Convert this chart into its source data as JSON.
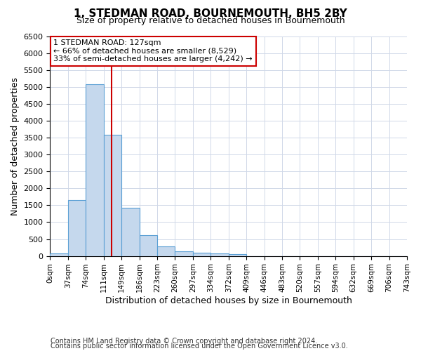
{
  "title": "1, STEDMAN ROAD, BOURNEMOUTH, BH5 2BY",
  "subtitle": "Size of property relative to detached houses in Bournemouth",
  "xlabel": "Distribution of detached houses by size in Bournemouth",
  "ylabel": "Number of detached properties",
  "footnote1": "Contains HM Land Registry data © Crown copyright and database right 2024.",
  "footnote2": "Contains public sector information licensed under the Open Government Licence v3.0.",
  "bin_labels": [
    "0sqm",
    "37sqm",
    "74sqm",
    "111sqm",
    "149sqm",
    "186sqm",
    "223sqm",
    "260sqm",
    "297sqm",
    "334sqm",
    "372sqm",
    "409sqm",
    "446sqm",
    "483sqm",
    "520sqm",
    "557sqm",
    "594sqm",
    "632sqm",
    "669sqm",
    "706sqm",
    "743sqm"
  ],
  "bar_values": [
    75,
    1650,
    5070,
    3580,
    1420,
    620,
    290,
    140,
    100,
    75,
    55,
    0,
    0,
    0,
    0,
    0,
    0,
    0,
    0,
    0
  ],
  "bar_color": "#c5d8ed",
  "bar_edge_color": "#5a9fd4",
  "grid_color": "#d0d8e8",
  "vline_x": 127,
  "vline_color": "#cc0000",
  "ylim_max": 6500,
  "yticks": [
    0,
    500,
    1000,
    1500,
    2000,
    2500,
    3000,
    3500,
    4000,
    4500,
    5000,
    5500,
    6000,
    6500
  ],
  "annotation_line1": "1 STEDMAN ROAD: 127sqm",
  "annotation_line2": "← 66% of detached houses are smaller (8,529)",
  "annotation_line3": "33% of semi-detached houses are larger (4,242) →",
  "annotation_box_color": "#ffffff",
  "annotation_box_edge": "#cc0000",
  "bin_width": 37,
  "n_bins": 20,
  "property_sqm": 127,
  "title_fontsize": 11,
  "subtitle_fontsize": 9,
  "axis_label_fontsize": 9,
  "tick_fontsize": 8,
  "xtick_fontsize": 7.5,
  "annotation_fontsize": 8,
  "footnote_fontsize": 7
}
